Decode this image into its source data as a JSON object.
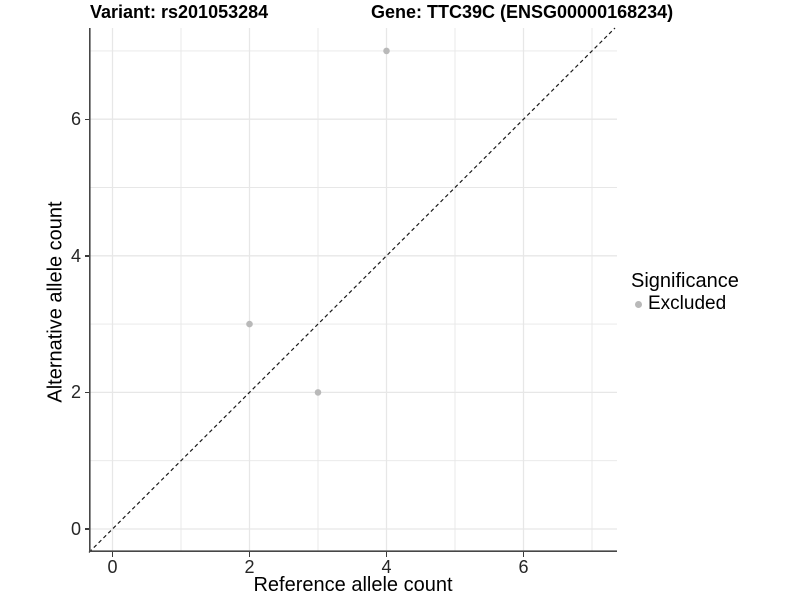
{
  "figure": {
    "background": "#ffffff"
  },
  "chart_data": {
    "type": "scatter",
    "title_variant": "Variant: rs201053284",
    "title_gene": "Gene: TTC39C (ENSG00000168234)",
    "xlabel": "Reference allele count",
    "ylabel": "Alternative allele count",
    "x_ticks": [
      0,
      2,
      4,
      6
    ],
    "y_ticks": [
      0,
      2,
      4,
      6
    ],
    "xlim": [
      -0.35,
      7.36
    ],
    "ylim": [
      -0.34,
      7.33
    ],
    "grid": {
      "major": [
        0,
        2,
        4,
        6
      ],
      "minor": [
        1,
        3,
        5,
        7
      ],
      "on": true,
      "color": "#e7e7e7"
    },
    "reference_line": {
      "type": "identity y=x",
      "style": "dashed",
      "color": "#1a1a1a"
    },
    "series": [
      {
        "name": "Excluded",
        "color": "#b9b9b9",
        "points": [
          {
            "x": 2,
            "y": 3
          },
          {
            "x": 3,
            "y": 2
          },
          {
            "x": 4,
            "y": 7
          }
        ]
      }
    ],
    "legend": {
      "title": "Significance",
      "position": "right",
      "items": [
        {
          "label": "Excluded",
          "color": "#b9b9b9"
        }
      ]
    }
  }
}
